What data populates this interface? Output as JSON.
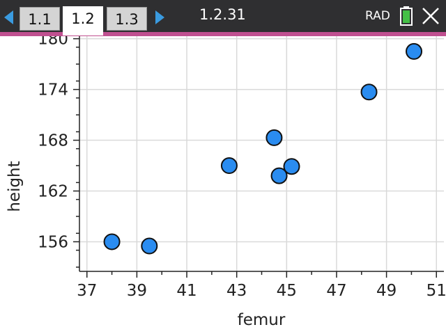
{
  "tabs": [
    {
      "label": "1.1"
    },
    {
      "label": "1.2"
    },
    {
      "label": "1.3"
    }
  ],
  "active_tab": "1.2",
  "document_title": "1.2.31",
  "angle_mode": "RAD",
  "icons": {
    "nav_left": "triangle-left-icon",
    "nav_right": "triangle-right-icon",
    "battery": "battery-icon",
    "close": "close-icon"
  },
  "colors": {
    "topbar": "#2f2f31",
    "accent": "#c05090",
    "nav_arrow": "#3a9be0",
    "battery_fill": "#44c046",
    "point_fill": "#2a8cf0",
    "grid": "#d9d9d9"
  },
  "chart_data": {
    "type": "scatter",
    "xlabel": "femur",
    "ylabel": "height",
    "xlim": [
      36.7,
      51.3
    ],
    "ylim": [
      152.5,
      180.3
    ],
    "x_ticks": [
      37,
      39,
      41,
      43,
      45,
      47,
      49,
      51
    ],
    "y_ticks": [
      156,
      162,
      168,
      174,
      180
    ],
    "grid": true,
    "points": [
      {
        "x": 38.0,
        "y": 156.0
      },
      {
        "x": 39.5,
        "y": 155.5
      },
      {
        "x": 42.7,
        "y": 165.0
      },
      {
        "x": 44.5,
        "y": 168.3
      },
      {
        "x": 44.7,
        "y": 163.8
      },
      {
        "x": 45.2,
        "y": 164.9
      },
      {
        "x": 48.3,
        "y": 173.7
      },
      {
        "x": 50.1,
        "y": 178.5
      }
    ]
  }
}
